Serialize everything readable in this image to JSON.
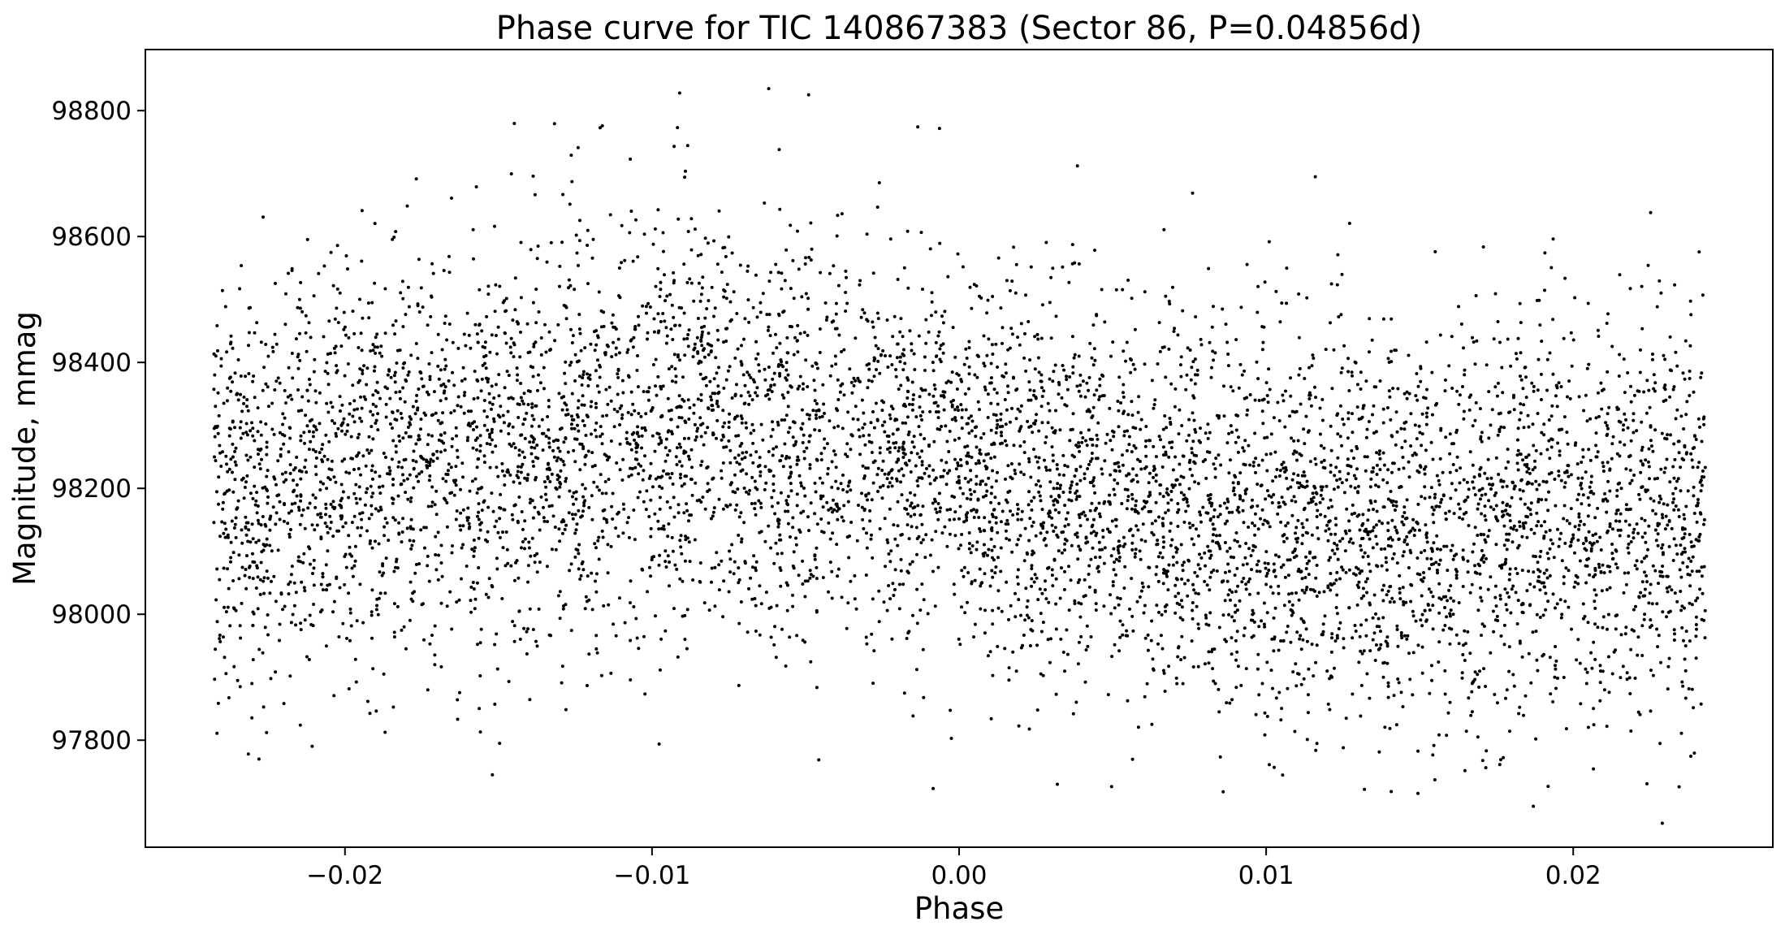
{
  "chart_data": {
    "type": "scatter",
    "title": "Phase curve for TIC 140867383 (Sector 86, P=0.04856d)",
    "xlabel": "Phase",
    "ylabel": "Magnitude, mmag",
    "xlim": [
      -0.0265,
      0.0265
    ],
    "ylim": [
      97630,
      98897
    ],
    "xticks": [
      -0.02,
      -0.01,
      0.0,
      0.01,
      0.02
    ],
    "xtick_labels": [
      "−0.02",
      "−0.01",
      "0.00",
      "0.01",
      "0.02"
    ],
    "yticks": [
      97800,
      98000,
      98200,
      98400,
      98600,
      98800
    ],
    "ytick_labels": [
      "97800",
      "98000",
      "98200",
      "98400",
      "98600",
      "98800"
    ],
    "grid": false,
    "legend": "none",
    "marker_color": "#000000",
    "series_summary": {
      "phase_range": [
        -0.0243,
        0.0243
      ],
      "trend_points": [
        {
          "x": -0.024,
          "y": 98200
        },
        {
          "x": -0.016,
          "y": 98260
        },
        {
          "x": -0.008,
          "y": 98310
        },
        {
          "x": 0.0,
          "y": 98240
        },
        {
          "x": 0.008,
          "y": 98160
        },
        {
          "x": 0.016,
          "y": 98130
        },
        {
          "x": 0.024,
          "y": 98170
        }
      ],
      "scatter_sd_mmag": 155
    },
    "outliers": [
      {
        "x": -0.0049,
        "y": 98825
      },
      {
        "x": -0.0062,
        "y": 98835
      },
      {
        "x": -0.0091,
        "y": 98828
      },
      {
        "x": 0.0116,
        "y": 98695
      },
      {
        "x": 0.0187,
        "y": 97695
      },
      {
        "x": 0.0229,
        "y": 97668
      },
      {
        "x": -0.0228,
        "y": 97770
      },
      {
        "x": 0.0032,
        "y": 97730
      },
      {
        "x": 0.0086,
        "y": 97718
      },
      {
        "x": 0.0132,
        "y": 97722
      },
      {
        "x": -0.0152,
        "y": 97745
      }
    ]
  }
}
